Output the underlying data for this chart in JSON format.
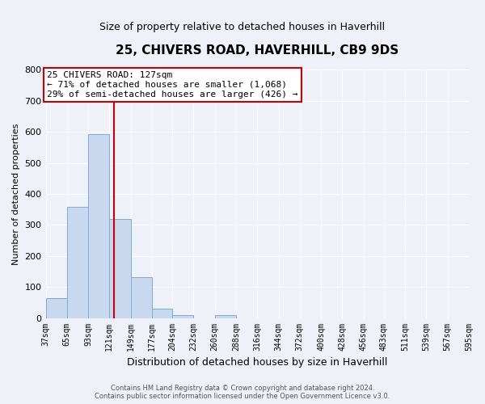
{
  "title": "25, CHIVERS ROAD, HAVERHILL, CB9 9DS",
  "subtitle": "Size of property relative to detached houses in Haverhill",
  "xlabel": "Distribution of detached houses by size in Haverhill",
  "ylabel": "Number of detached properties",
  "bar_edges": [
    37,
    65,
    93,
    121,
    149,
    177,
    204,
    232,
    260,
    288,
    316,
    344,
    372,
    400,
    428,
    456,
    483,
    511,
    539,
    567,
    595
  ],
  "bar_heights": [
    65,
    358,
    594,
    319,
    131,
    30,
    8,
    0,
    8,
    0,
    0,
    0,
    0,
    0,
    0,
    0,
    0,
    0,
    0,
    0
  ],
  "bar_color": "#c8d8ee",
  "bar_edge_color": "#7badd4",
  "vline_x": 127,
  "vline_color": "#cc0000",
  "ylim": [
    0,
    800
  ],
  "yticks": [
    0,
    100,
    200,
    300,
    400,
    500,
    600,
    700,
    800
  ],
  "annotation_title": "25 CHIVERS ROAD: 127sqm",
  "annotation_line1": "← 71% of detached houses are smaller (1,068)",
  "annotation_line2": "29% of semi-detached houses are larger (426) →",
  "annotation_box_color": "#ffffff",
  "annotation_box_edge": "#cc0000",
  "footer1": "Contains HM Land Registry data © Crown copyright and database right 2024.",
  "footer2": "Contains public sector information licensed under the Open Government Licence v3.0.",
  "tick_labels": [
    "37sqm",
    "65sqm",
    "93sqm",
    "121sqm",
    "149sqm",
    "177sqm",
    "204sqm",
    "232sqm",
    "260sqm",
    "288sqm",
    "316sqm",
    "344sqm",
    "372sqm",
    "400sqm",
    "428sqm",
    "456sqm",
    "483sqm",
    "511sqm",
    "539sqm",
    "567sqm",
    "595sqm"
  ],
  "background_color": "#eef2f8",
  "grid_color": "#ffffff",
  "title_fontsize": 11,
  "subtitle_fontsize": 9,
  "ylabel_fontsize": 8,
  "xlabel_fontsize": 9
}
